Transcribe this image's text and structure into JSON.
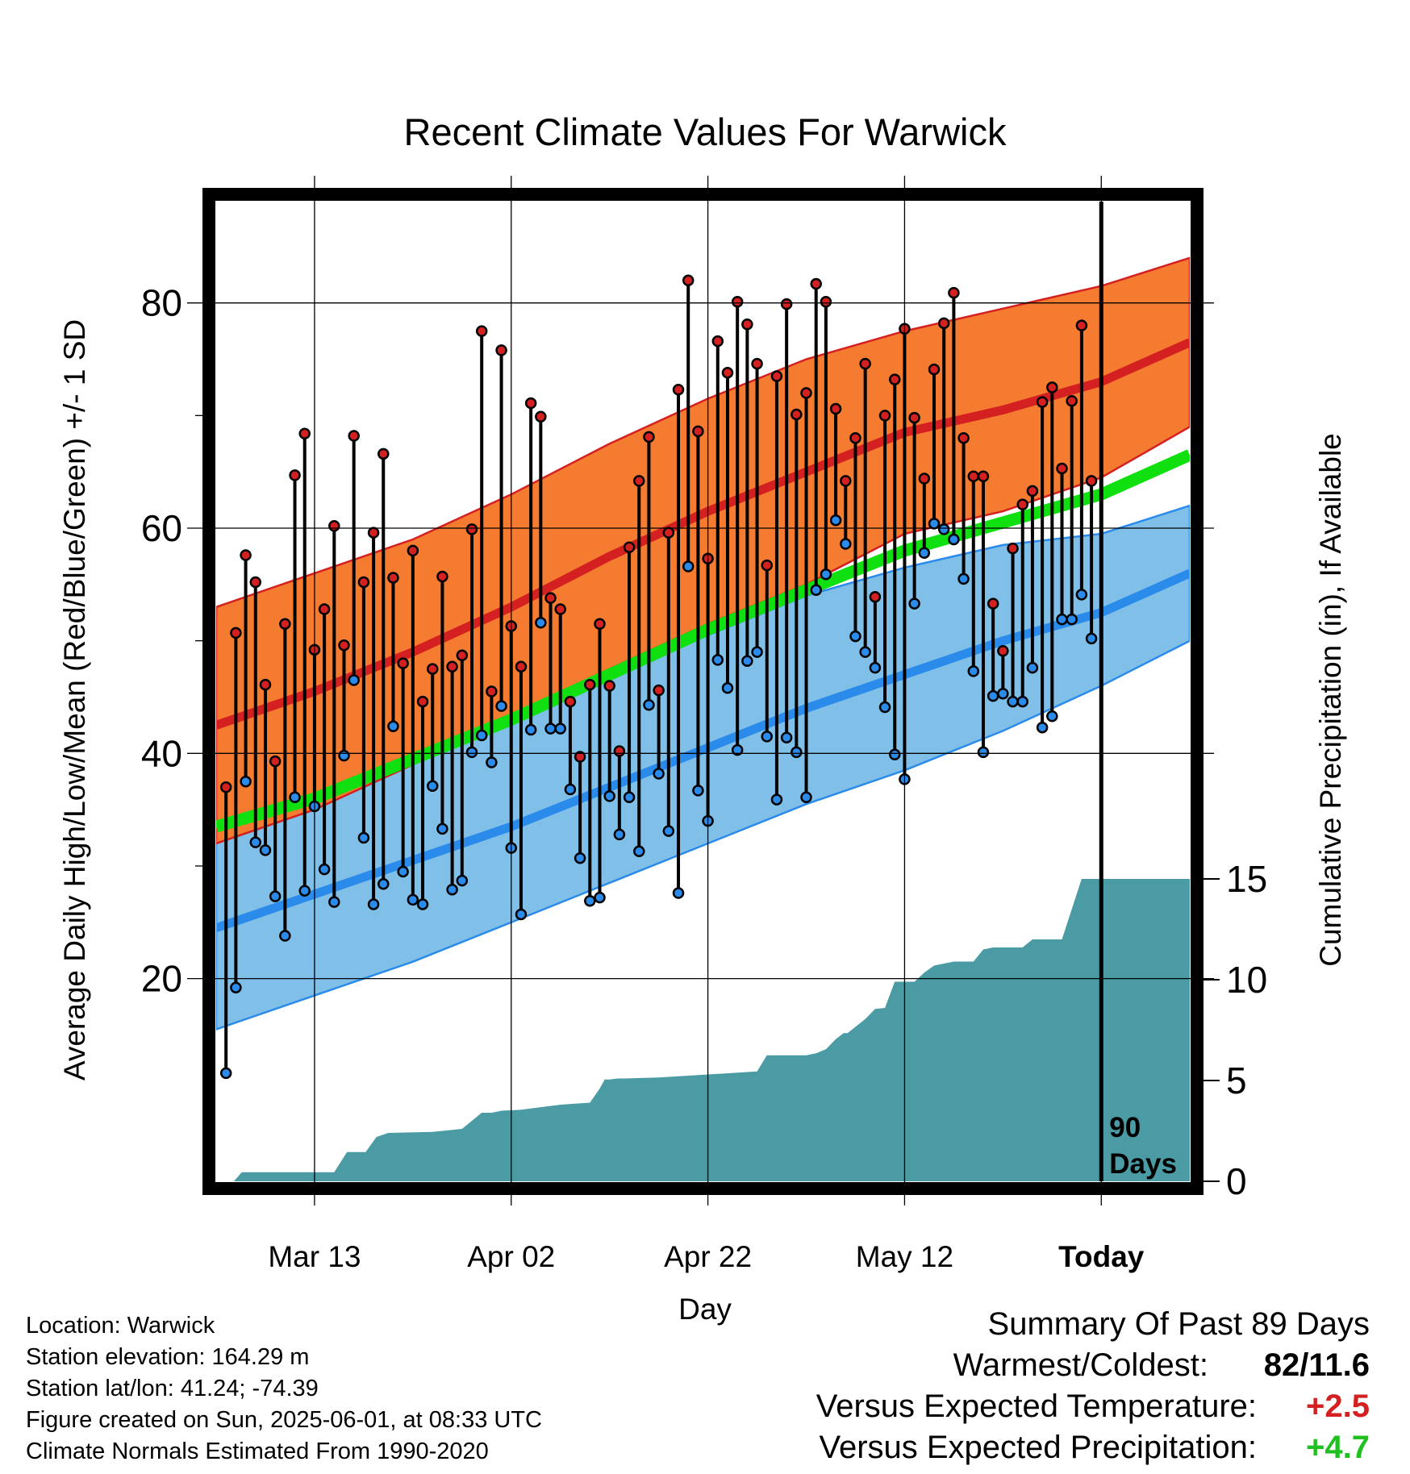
{
  "chart_data": {
    "type": "line",
    "title": "Recent Climate Values For Warwick",
    "xlabel": "Day",
    "ylabel_left": "Average Daily High/Low/Mean (Red/Blue/Green) +/- 1 SD",
    "ylabel_right": "Cumulative Precipitation (in), If Available",
    "x_tick_labels": [
      "Mar 13",
      "Apr 02",
      "Apr 22",
      "May 12",
      "Today"
    ],
    "x_tick_days": [
      10,
      30,
      50,
      70,
      90
    ],
    "x_range_days": [
      0,
      99
    ],
    "ylim_left": [
      2,
      89
    ],
    "y_ticks_left": [
      20,
      40,
      60,
      80
    ],
    "ylim_right": [
      0,
      15
    ],
    "y_ticks_right": [
      0,
      5,
      10,
      15
    ],
    "today_marker_label": [
      "90",
      "Days"
    ],
    "grid": true,
    "colors": {
      "high_band": "#F47B30",
      "high_mean": "#D42020",
      "low_band": "#80C0E8",
      "low_mean": "#2B8BEB",
      "mean_normal": "#10E010",
      "precip_fill": "#4A9BA4",
      "high_dot": "#D42020",
      "low_dot": "#2B8BEB"
    },
    "normal_series": {
      "days": [
        0,
        10,
        20,
        30,
        40,
        50,
        60,
        70,
        80,
        90,
        99
      ],
      "normal_high": [
        42.5,
        45.5,
        49,
        53,
        57.5,
        61.5,
        65,
        68.5,
        70.5,
        73,
        76.5
      ],
      "normal_high_upper": [
        53,
        56,
        59,
        63,
        67.5,
        71.5,
        75,
        77.5,
        79.5,
        81.5,
        84
      ],
      "normal_high_lower": [
        32,
        35,
        39,
        43,
        47.5,
        51.5,
        55,
        59.5,
        61.5,
        64.5,
        69
      ],
      "normal_mean": [
        33.5,
        36,
        39.5,
        43,
        47,
        51,
        54.5,
        58,
        60.5,
        63,
        66.5
      ],
      "normal_low": [
        24.5,
        27.5,
        30.5,
        33.5,
        37,
        40.5,
        44,
        47,
        50,
        52.5,
        56
      ],
      "normal_low_upper": [
        33.5,
        37,
        40.5,
        43.5,
        47,
        50.5,
        54,
        56.5,
        58.5,
        59.5,
        62
      ],
      "normal_low_lower": [
        15.5,
        18.5,
        21.5,
        25,
        28.5,
        32,
        35.5,
        38.5,
        42,
        46,
        50
      ]
    },
    "daily_high": [
      37,
      50.7,
      57.6,
      55.2,
      46.1,
      39.3,
      51.5,
      64.7,
      68.4,
      49.2,
      52.8,
      60.2,
      49.6,
      68.2,
      55.2,
      59.6,
      66.6,
      55.6,
      48,
      58,
      44.6,
      47.5,
      55.7,
      47.7,
      48.7,
      59.9,
      77.5,
      45.5,
      75.8,
      51.3,
      47.7,
      71.1,
      69.9,
      53.8,
      52.8,
      44.6,
      39.7,
      46.1,
      51.5,
      46,
      40.2,
      58.3,
      64.2,
      68.1,
      45.6,
      59.6,
      72.3,
      82,
      68.6,
      57.3,
      76.6,
      73.8,
      80.1,
      78.1,
      74.6,
      56.7,
      73.5,
      79.9,
      70.1,
      72,
      81.7,
      80.1,
      70.6,
      64.2,
      68,
      74.6,
      53.9,
      70,
      73.2,
      77.7,
      69.8,
      64.4,
      74.1,
      78.2,
      80.9,
      68,
      64.6,
      64.6,
      53.3,
      49.1,
      58.2,
      62.1,
      63.3,
      71.2,
      72.5,
      65.3,
      71.3,
      78,
      64.2
    ],
    "daily_low": [
      11.6,
      19.2,
      37.5,
      32.1,
      31.4,
      27.3,
      23.8,
      36.1,
      27.8,
      35.3,
      29.7,
      26.8,
      39.8,
      46.5,
      32.5,
      26.6,
      28.4,
      42.4,
      29.5,
      27,
      26.6,
      37.1,
      33.3,
      27.9,
      28.7,
      40.1,
      41.6,
      39.2,
      44.2,
      31.6,
      25.7,
      42.1,
      51.6,
      42.2,
      42.2,
      36.8,
      30.7,
      26.9,
      27.2,
      36.2,
      32.8,
      36.1,
      31.3,
      44.3,
      38.2,
      33.1,
      27.6,
      56.6,
      36.7,
      34,
      48.3,
      45.8,
      40.3,
      48.2,
      49,
      41.5,
      35.9,
      41.4,
      40.1,
      36.1,
      54.5,
      55.9,
      60.7,
      58.6,
      50.4,
      49,
      47.6,
      44.1,
      39.9,
      37.7,
      53.3,
      57.8,
      60.4,
      59.9,
      59,
      55.5,
      47.3,
      40.1,
      45.1,
      45.3,
      44.6,
      44.6,
      47.6,
      42.3,
      43.3,
      51.9,
      51.9,
      54.1,
      50.2
    ],
    "precip_cumulative": {
      "days": [
        0,
        1.8,
        2.6,
        12,
        13.3,
        15.2,
        16.3,
        17.5,
        22,
        25,
        27,
        28,
        29,
        31,
        35,
        38,
        39,
        39.5,
        40,
        40.8,
        41.5,
        45,
        55,
        56,
        57,
        60,
        61,
        62,
        63,
        63.8,
        64.2,
        66,
        67,
        68,
        69,
        70,
        71,
        72,
        73,
        74,
        75,
        77,
        78,
        79,
        80,
        82,
        82.5,
        83,
        84,
        86,
        88,
        89,
        99
      ],
      "values": [
        0,
        0,
        0.45,
        0.45,
        1.45,
        1.45,
        2.2,
        2.4,
        2.45,
        2.6,
        3.4,
        3.4,
        3.5,
        3.55,
        3.8,
        3.9,
        4.6,
        5.05,
        5.05,
        5.1,
        5.1,
        5.15,
        5.45,
        6.25,
        6.25,
        6.25,
        6.35,
        6.55,
        7.05,
        7.35,
        7.35,
        8.05,
        8.55,
        8.6,
        9.9,
        9.9,
        9.9,
        10.35,
        10.7,
        10.8,
        10.9,
        10.9,
        11.5,
        11.6,
        11.6,
        11.6,
        11.8,
        12.0,
        12.0,
        12.0,
        15.0,
        15.0,
        15.0
      ]
    }
  },
  "info": {
    "location": "Location: Warwick",
    "elevation": "Station elevation: 164.29 m",
    "latlon": "Station lat/lon: 41.24; -74.39",
    "created": "Figure created on Sun, 2025-06-01, at 08:33 UTC",
    "normals": "Climate Normals Estimated From 1990-2020"
  },
  "summary": {
    "heading": "Summary Of Past 89 Days",
    "warmest_coldest_label": "Warmest/Coldest:",
    "warmest_coldest_value": "82/11.6",
    "temp_label": "Versus Expected Temperature:",
    "temp_value": "+2.5",
    "precip_label": "Versus Expected Precipitation:",
    "precip_value": "+4.7",
    "temp_value_color": "#D42020",
    "precip_value_color": "#20C020"
  }
}
